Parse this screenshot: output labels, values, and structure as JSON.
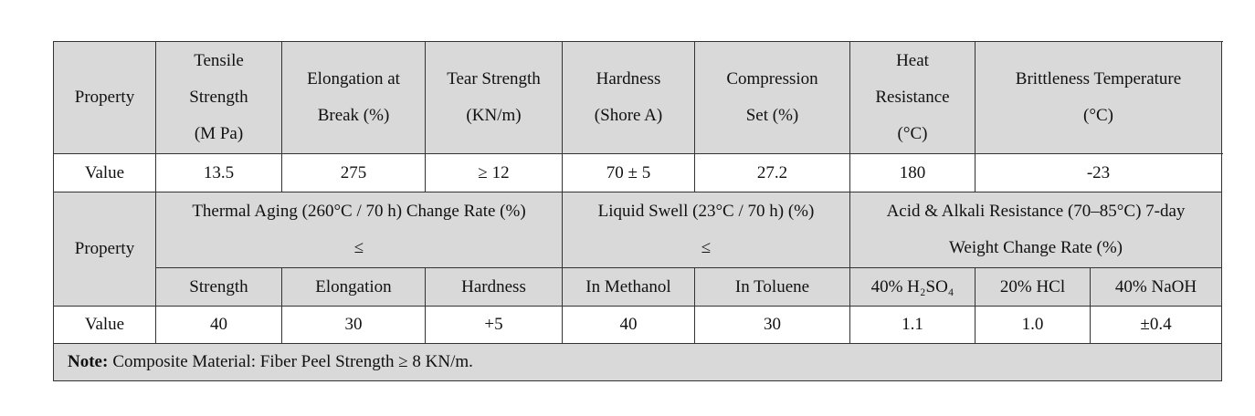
{
  "table1": {
    "header_label": "Property",
    "headers": [
      [
        "Tensile",
        "Strength",
        "(M Pa)"
      ],
      [
        "Elongation at",
        "Break (%)"
      ],
      [
        "Tear Strength",
        "(KN/m)"
      ],
      [
        "Hardness",
        "(Shore A)"
      ],
      [
        "Compression",
        "Set (%)"
      ],
      [
        "Heat",
        "Resistance",
        "(°C)"
      ],
      [
        "Brittleness Temperature",
        "(°C)"
      ]
    ],
    "value_label": "Value",
    "values": [
      "13.5",
      "275",
      "≥ 12",
      "70 ± 5",
      "27.2",
      "180",
      "-23"
    ]
  },
  "table2": {
    "header_label": "Property",
    "groups": [
      {
        "label": [
          "Thermal Aging (260°C / 70 h) Change Rate (%)",
          "≤"
        ],
        "subheaders": [
          "Strength",
          "Elongation",
          "Hardness"
        ]
      },
      {
        "label": [
          "Liquid Swell (23°C / 70 h) (%)",
          "≤"
        ],
        "subheaders": [
          "In Methanol",
          "In Toluene"
        ]
      },
      {
        "label": [
          "Acid & Alkali Resistance (70–85°C) 7-day",
          "Weight Change Rate (%)"
        ],
        "subheaders": [
          "40% H₂SO₄",
          "20% HCl",
          "40% NaOH"
        ]
      }
    ],
    "value_label": "Value",
    "values": [
      "40",
      "30",
      "+5",
      "40",
      "30",
      "1.1",
      "1.0",
      "±0.4"
    ]
  },
  "note": {
    "label": "Note:",
    "text": "Composite Material: Fiber Peel Strength ≥ 8 KN/m."
  }
}
